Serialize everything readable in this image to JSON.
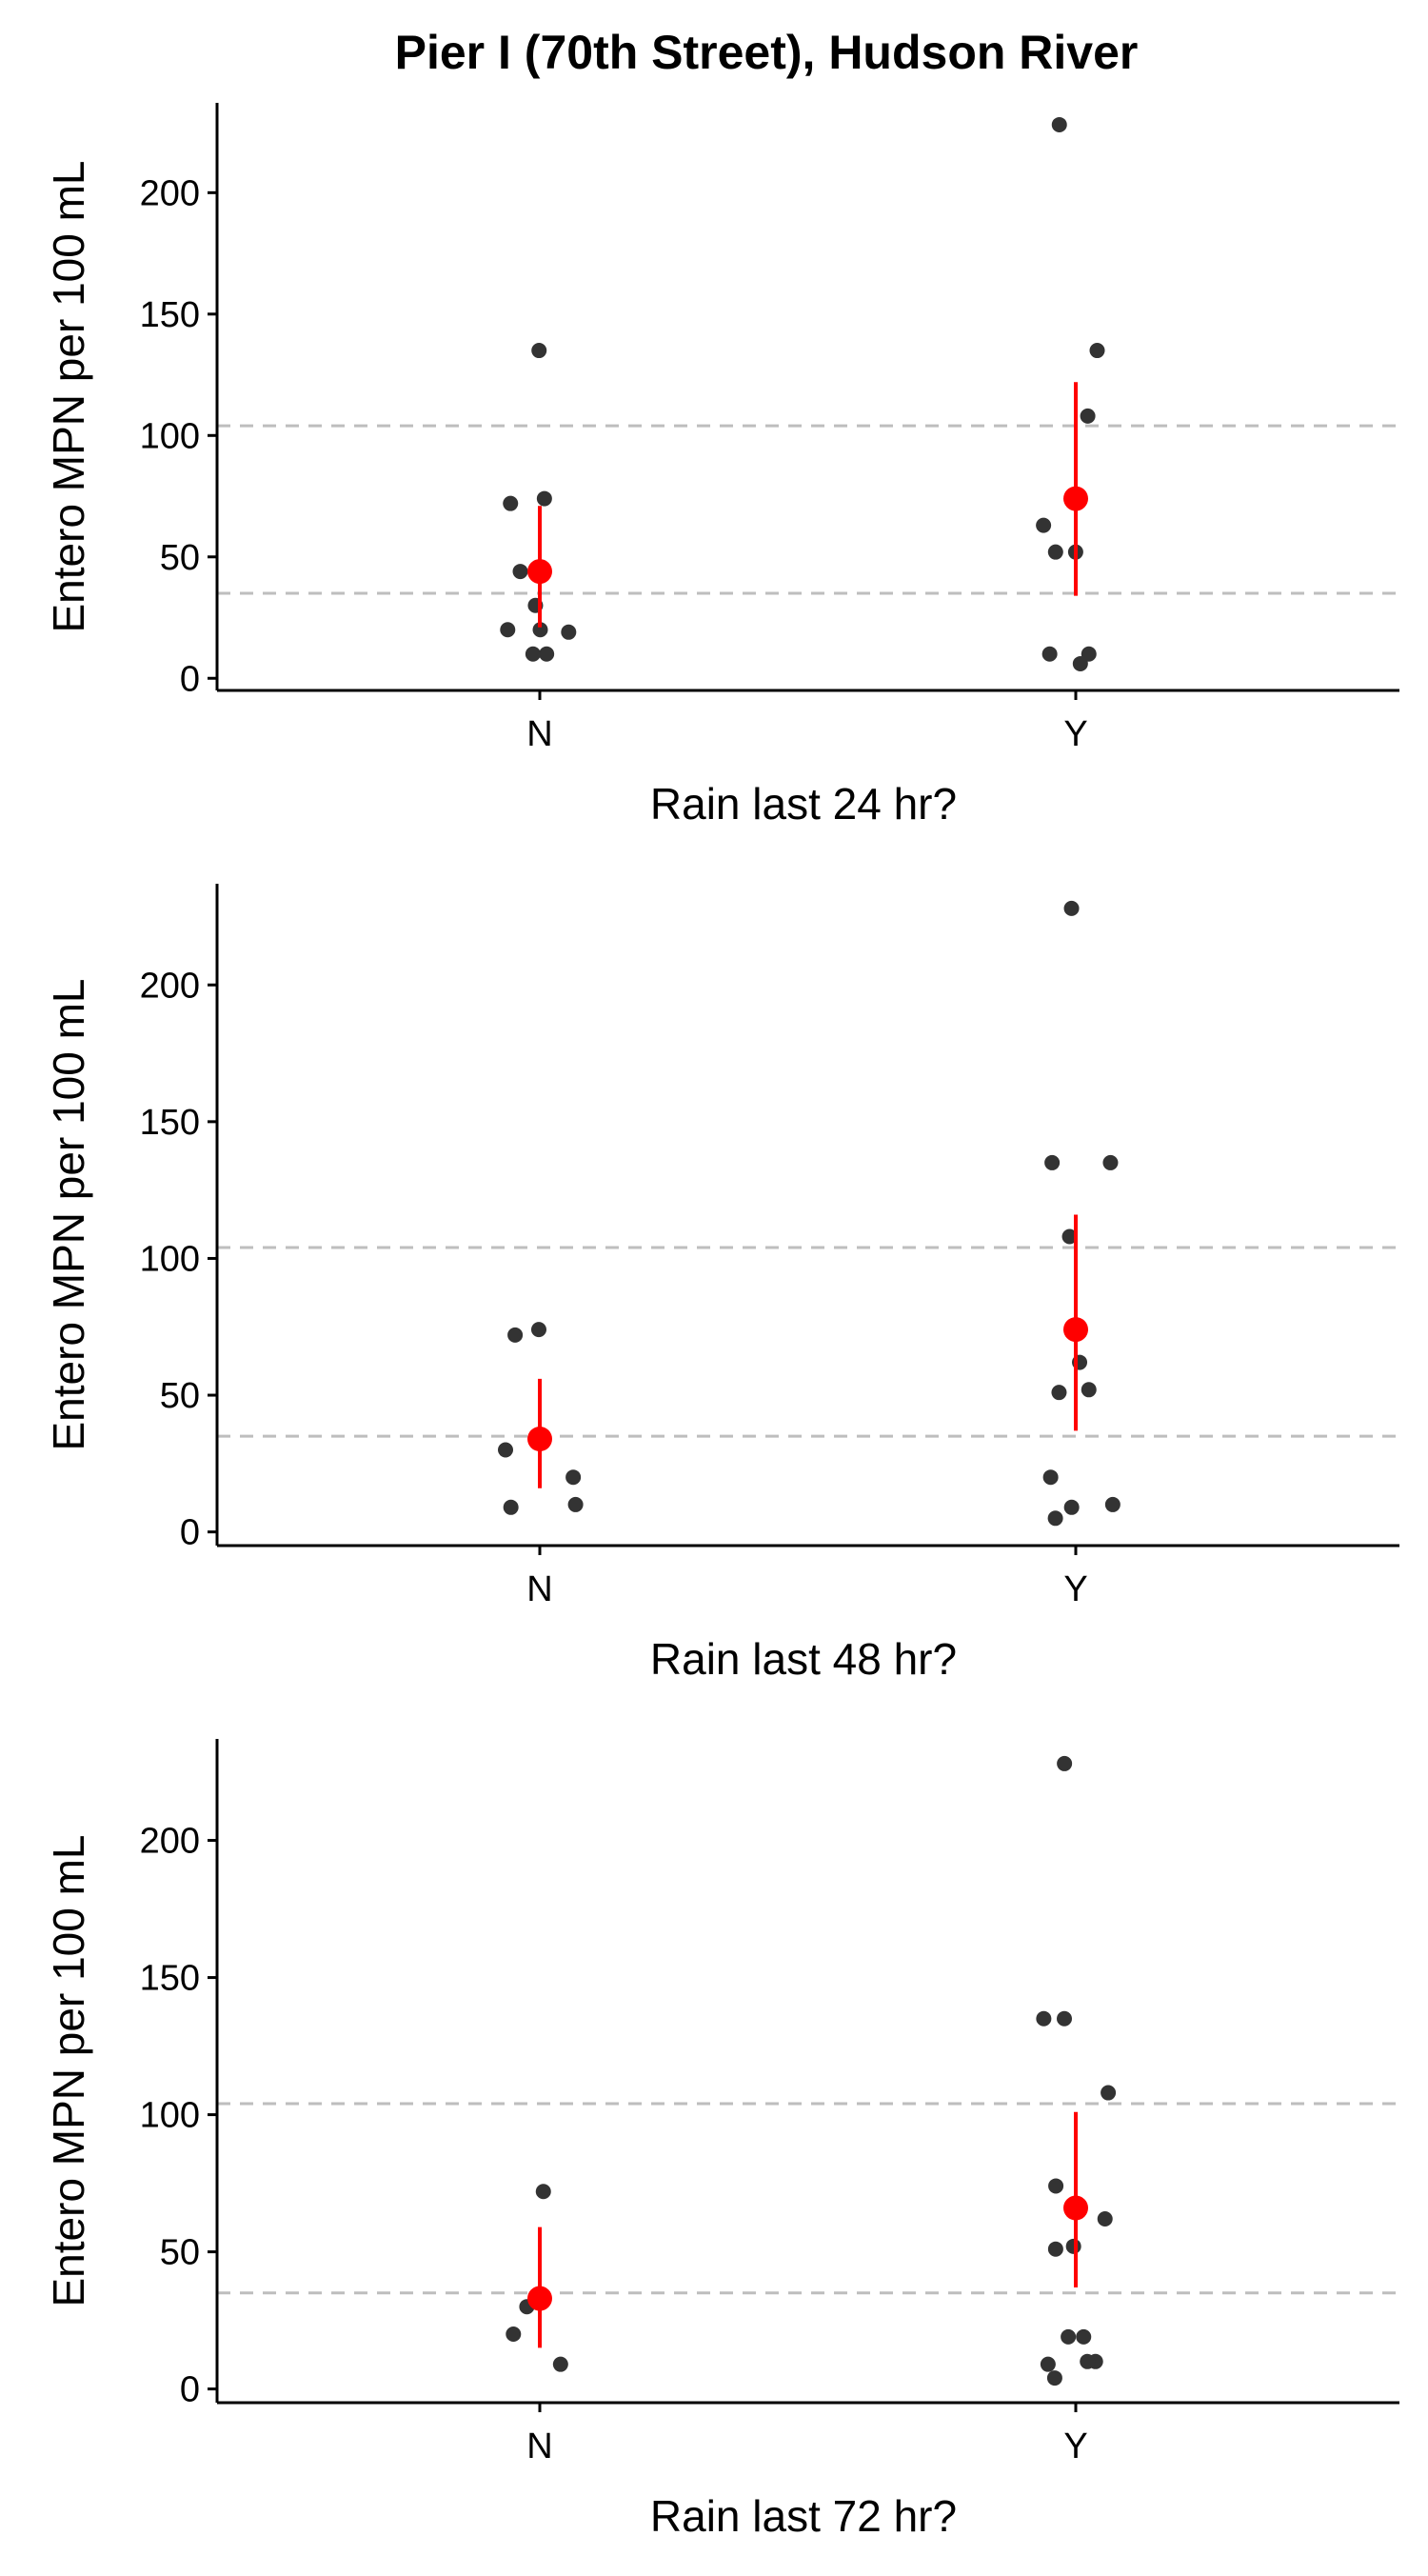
{
  "title": "Pier I (70th Street), Hudson River",
  "chart_data": [
    {
      "type": "scatter",
      "xlabel": "Rain last 24 hr?",
      "ylabel": "Entero MPN per 100 mL",
      "categories": [
        "N",
        "Y"
      ],
      "ylim": [
        -5,
        237
      ],
      "yticks": [
        0,
        50,
        100,
        150,
        200
      ],
      "reference_lines": [
        35,
        104
      ],
      "points": {
        "N": [
          135,
          74,
          72,
          44,
          30,
          20,
          20,
          19,
          10,
          10
        ],
        "Y": [
          228,
          135,
          108,
          63,
          52,
          52,
          10,
          10,
          6
        ]
      },
      "means": {
        "N": 44,
        "Y": 74
      },
      "error_bars": {
        "N": [
          21,
          71
        ],
        "Y": [
          34,
          122
        ]
      }
    },
    {
      "type": "scatter",
      "xlabel": "Rain last 48 hr?",
      "ylabel": "Entero MPN per 100 mL",
      "categories": [
        "N",
        "Y"
      ],
      "ylim": [
        -5,
        237
      ],
      "yticks": [
        0,
        50,
        100,
        150,
        200
      ],
      "reference_lines": [
        35,
        104
      ],
      "points": {
        "N": [
          74,
          72,
          30,
          20,
          10,
          9
        ],
        "Y": [
          228,
          135,
          135,
          108,
          62,
          52,
          51,
          20,
          10,
          9,
          5
        ]
      },
      "means": {
        "N": 34,
        "Y": 74
      },
      "error_bars": {
        "N": [
          16,
          56
        ],
        "Y": [
          37,
          116
        ]
      }
    },
    {
      "type": "scatter",
      "xlabel": "Rain last 72 hr?",
      "ylabel": "Entero MPN per 100 mL",
      "categories": [
        "N",
        "Y"
      ],
      "ylim": [
        -5,
        237
      ],
      "yticks": [
        0,
        50,
        100,
        150,
        200
      ],
      "reference_lines": [
        35,
        104
      ],
      "points": {
        "N": [
          72,
          30,
          20,
          9
        ],
        "Y": [
          228,
          135,
          135,
          108,
          74,
          62,
          52,
          51,
          19,
          19,
          10,
          10,
          9,
          4
        ]
      },
      "means": {
        "N": 33,
        "Y": 66
      },
      "error_bars": {
        "N": [
          15,
          59
        ],
        "Y": [
          37,
          101
        ]
      }
    }
  ],
  "colors": {
    "points": "#333333",
    "mean": "#ff0000",
    "reference_line": "#bebebe",
    "axis": "#000000"
  }
}
